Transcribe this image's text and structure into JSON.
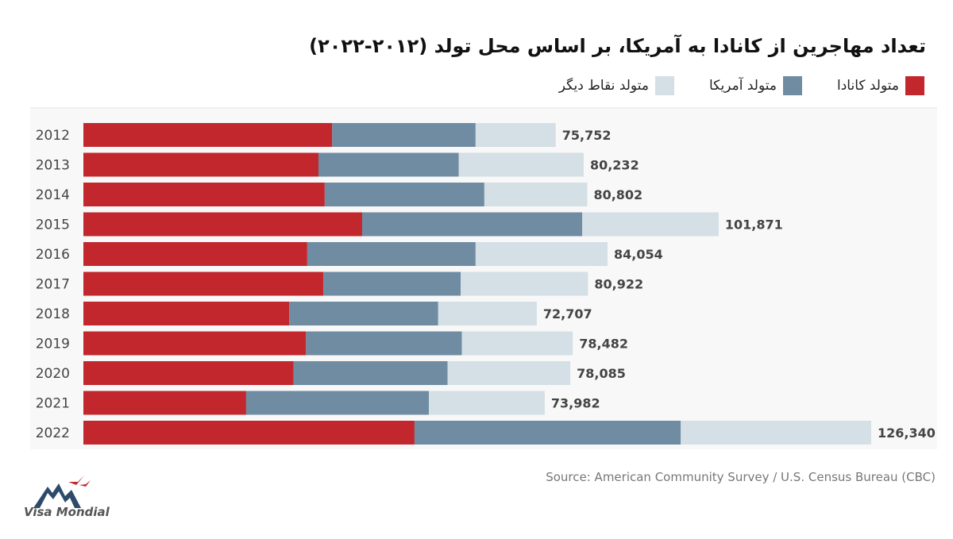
{
  "chart_data": {
    "type": "bar",
    "orientation": "horizontal",
    "stacked": true,
    "title": "تعداد مهاجرین از کانادا به آمریکا، بر اساس محل تولد (۲۰۱۲-۲۰۲۲)",
    "categories": [
      "2012",
      "2013",
      "2014",
      "2015",
      "2016",
      "2017",
      "2018",
      "2019",
      "2020",
      "2021",
      "2022"
    ],
    "series": [
      {
        "name": "متولد کانادا",
        "color": "#c1272d",
        "values": [
          39900,
          37700,
          38700,
          44700,
          35900,
          38500,
          33000,
          35700,
          33700,
          26100,
          53100
        ]
      },
      {
        "name": "متولد آمریکا",
        "color": "#6f8ca3",
        "values": [
          23000,
          22500,
          25600,
          35300,
          27000,
          22000,
          23900,
          25000,
          24700,
          29300,
          42700
        ]
      },
      {
        "name": "متولد نقاط دیگر",
        "color": "#d4e0e5",
        "values": [
          12852,
          20032,
          16502,
          21871,
          21154,
          20422,
          15807,
          17782,
          19685,
          18582,
          30540
        ]
      }
    ],
    "totals": [
      75752,
      80232,
      80802,
      101871,
      84054,
      80922,
      72707,
      78482,
      78085,
      73982,
      126340
    ],
    "total_labels": [
      "75,752",
      "80,232",
      "80,802",
      "101,871",
      "84,054",
      "80,922",
      "72,707",
      "78,482",
      "78,085",
      "73,982",
      "126,340"
    ],
    "xlim": [
      0,
      126340
    ],
    "legend_position": "top-right",
    "grid": false
  },
  "source": "Source: American Community Survey / U.S. Census Bureau (CBC)",
  "logo": {
    "text": "Visa Mondial"
  }
}
